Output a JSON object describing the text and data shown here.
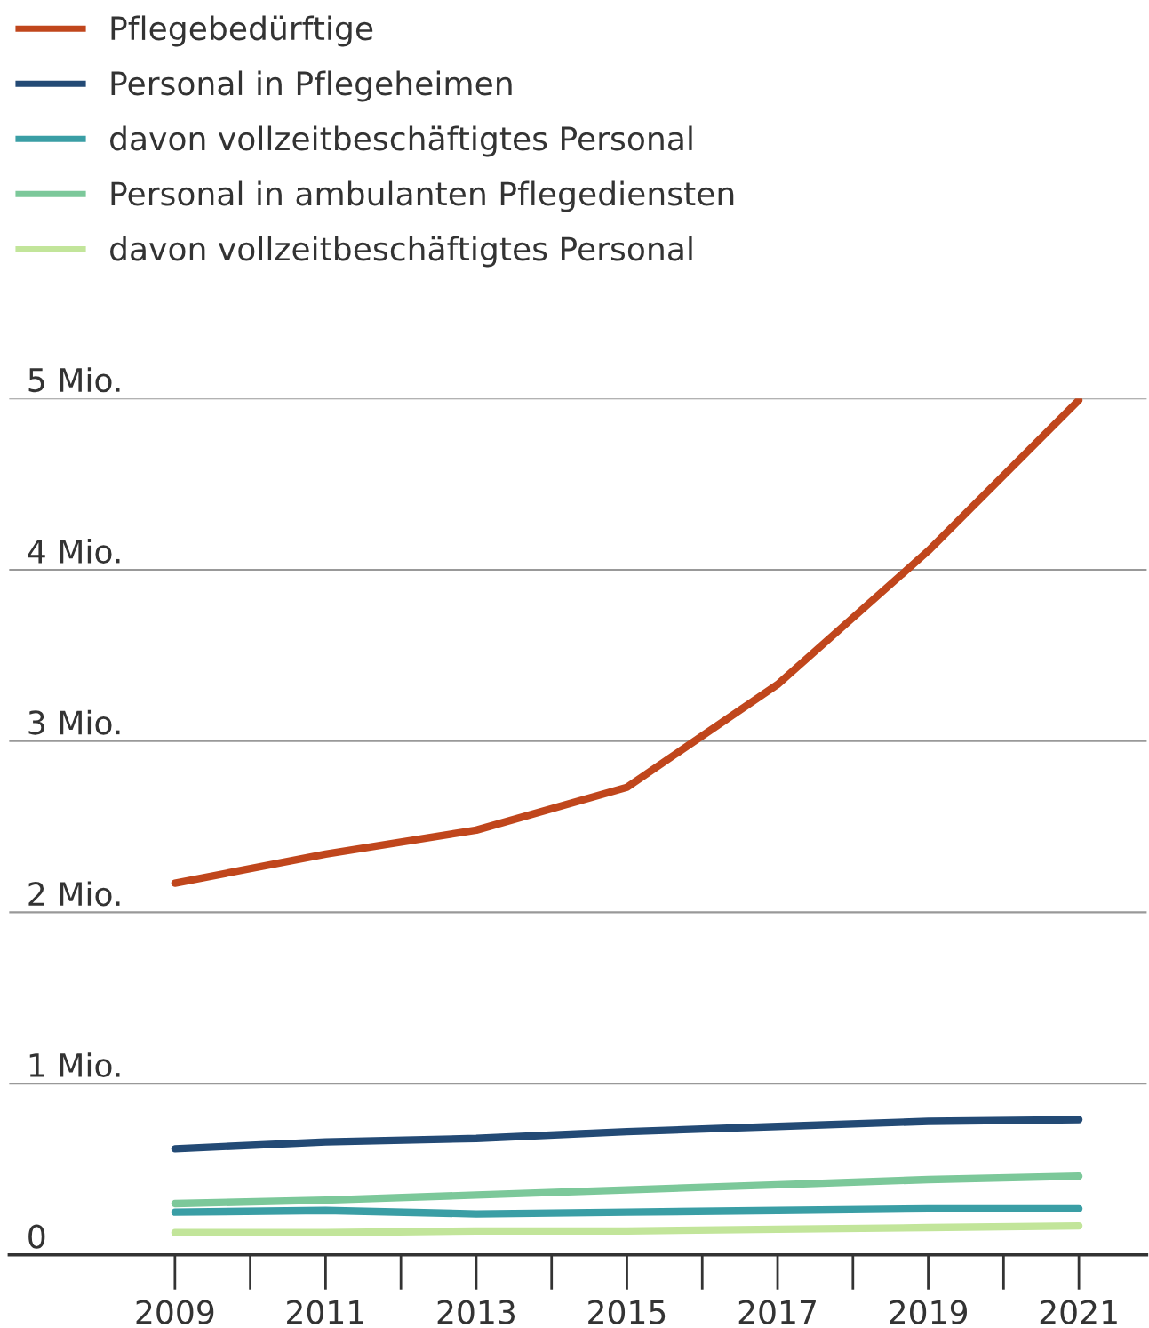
{
  "chart_data": {
    "type": "line",
    "x": [
      2009,
      2011,
      2013,
      2015,
      2017,
      2019,
      2021
    ],
    "series": [
      {
        "name": "Pflegebedürftige",
        "color": "#c0461c",
        "values": [
          2.17,
          2.34,
          2.48,
          2.73,
          3.33,
          4.11,
          4.99
        ]
      },
      {
        "name": "Personal in Pflegeheimen",
        "color": "#234a75",
        "values": [
          0.62,
          0.66,
          0.68,
          0.72,
          0.75,
          0.78,
          0.79
        ]
      },
      {
        "name": "davon vollzeitbeschäftigtes Personal",
        "color": "#3a9ea5",
        "values": [
          0.25,
          0.26,
          0.24,
          0.25,
          0.26,
          0.27,
          0.27
        ]
      },
      {
        "name": "Personal in ambulanten Pflegediensten",
        "color": "#7cc89a",
        "values": [
          0.3,
          0.32,
          0.35,
          0.38,
          0.41,
          0.44,
          0.46
        ]
      },
      {
        "name": "davon vollzeitbeschäftigtes Personal",
        "color": "#c2e59a",
        "values": [
          0.13,
          0.13,
          0.14,
          0.14,
          0.15,
          0.16,
          0.17
        ]
      }
    ],
    "xlim": [
      2006.8,
      2021.9
    ],
    "xticks": [
      2009,
      2011,
      2013,
      2015,
      2017,
      2019,
      2021
    ],
    "ylim": [
      0,
      5
    ],
    "yticks": [
      {
        "value": 0,
        "label": "0"
      },
      {
        "value": 1,
        "label": "1 Mio."
      },
      {
        "value": 2,
        "label": "2 Mio."
      },
      {
        "value": 3,
        "label": "3 Mio."
      },
      {
        "value": 4,
        "label": "4 Mio."
      },
      {
        "value": 5,
        "label": "5 Mio."
      }
    ],
    "grid": "y",
    "legend": "top",
    "marker": "none",
    "line_style": "solid"
  }
}
